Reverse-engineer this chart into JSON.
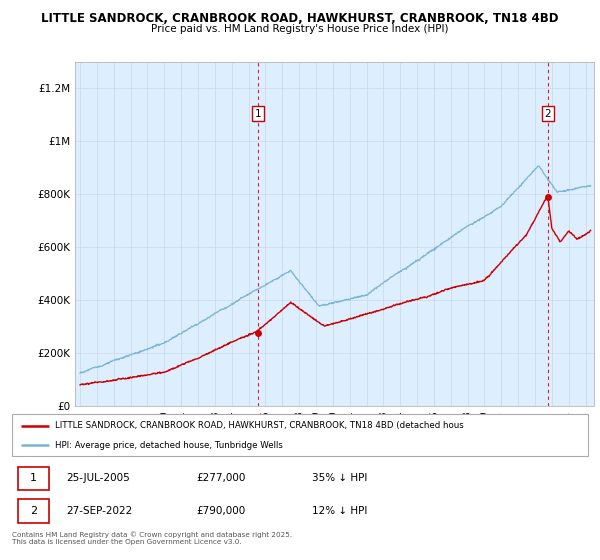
{
  "title1": "LITTLE SANDROCK, CRANBROOK ROAD, HAWKHURST, CRANBROOK, TN18 4BD",
  "title2": "Price paid vs. HM Land Registry's House Price Index (HPI)",
  "ylim": [
    0,
    1300000
  ],
  "yticks": [
    0,
    200000,
    400000,
    600000,
    800000,
    1000000,
    1200000
  ],
  "ytick_labels": [
    "£0",
    "£200K",
    "£400K",
    "£600K",
    "£800K",
    "£1M",
    "£1.2M"
  ],
  "hpi_color": "#7ab4d8",
  "price_color": "#cc0000",
  "plot_bg_color": "#ddeeff",
  "background_color": "#ffffff",
  "legend_label_price": "LITTLE SANDROCK, CRANBROOK ROAD, HAWKHURST, CRANBROOK, TN18 4BD (detached hous",
  "legend_label_hpi": "HPI: Average price, detached house, Tunbridge Wells",
  "transaction1_date": "25-JUL-2005",
  "transaction1_price": 277000,
  "transaction1_note": "35% ↓ HPI",
  "transaction2_date": "27-SEP-2022",
  "transaction2_price": 790000,
  "transaction2_note": "12% ↓ HPI",
  "footnote": "Contains HM Land Registry data © Crown copyright and database right 2025.\nThis data is licensed under the Open Government Licence v3.0.",
  "vline1_x": 2005.57,
  "vline2_x": 2022.75,
  "marker1_x": 2005.57,
  "marker1_y": 277000,
  "marker2_x": 2022.75,
  "marker2_y": 790000,
  "xmin": 1995.0,
  "xmax": 2025.5
}
